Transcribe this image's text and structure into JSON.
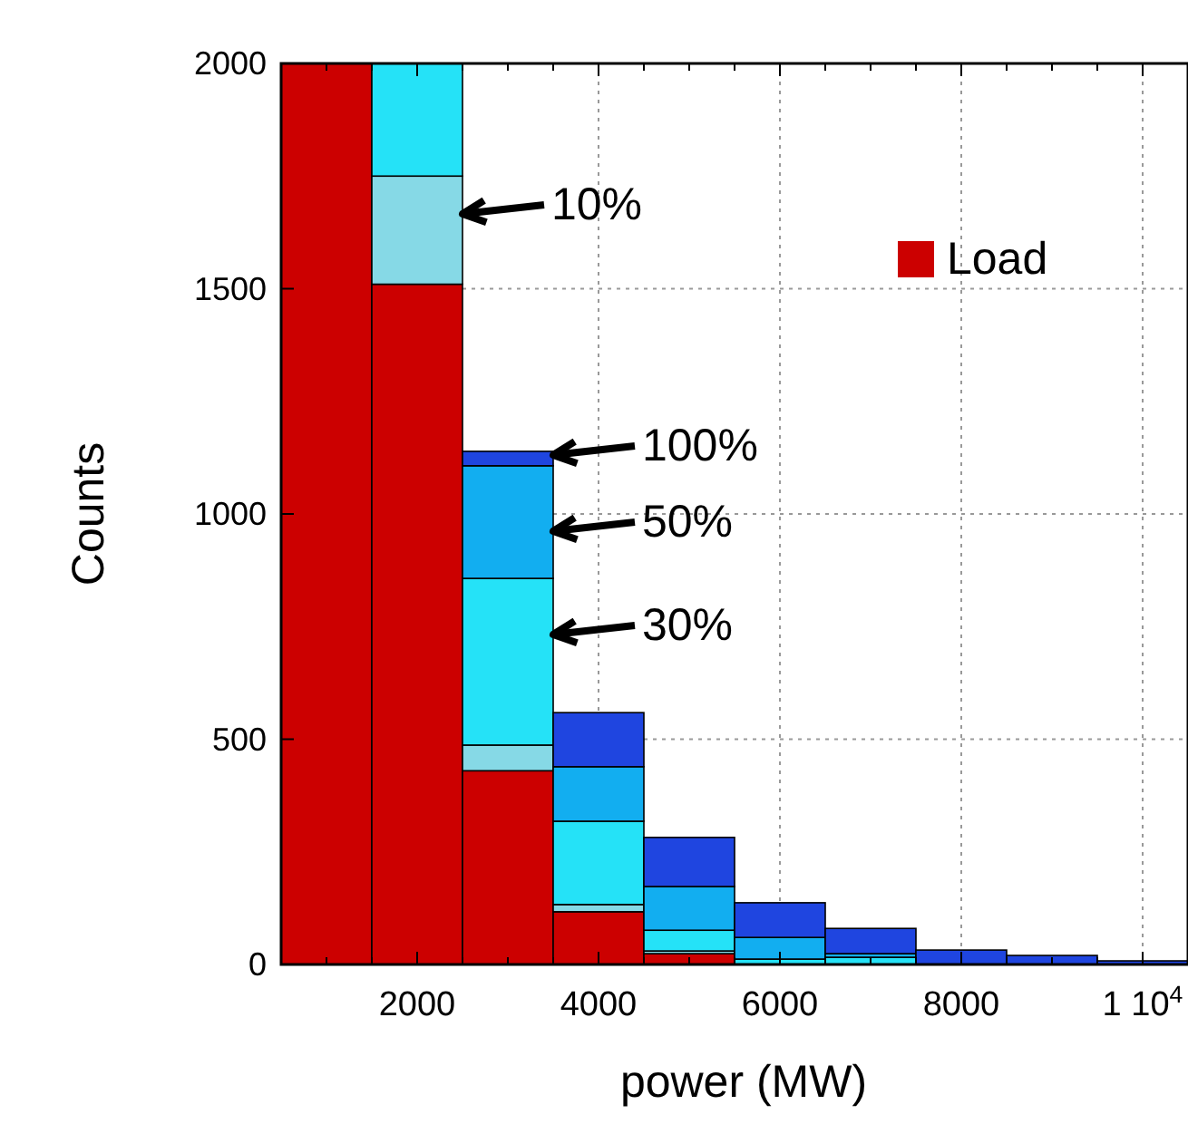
{
  "chart_data": {
    "type": "bar",
    "xlabel": "power (MW)",
    "ylabel": "Counts",
    "stacked": true,
    "x": [
      1000,
      2000,
      3000,
      4000,
      5000,
      6000,
      7000,
      8000,
      9000,
      10000
    ],
    "series": [
      {
        "name": "Load",
        "color": "#cc0000",
        "values": [
          2000,
          1510,
          430,
          117,
          24,
          null,
          null,
          null,
          null,
          null
        ]
      },
      {
        "color": "#86d9e6",
        "values": [
          null,
          240,
          57,
          16,
          6,
          null,
          null,
          null,
          null,
          null
        ]
      },
      {
        "color": "#25e2f7",
        "values": [
          null,
          250,
          370,
          185,
          46,
          12,
          16,
          null,
          null,
          null
        ]
      },
      {
        "color": "#12aef0",
        "values": [
          null,
          null,
          250,
          121,
          97,
          48,
          8,
          null,
          null,
          null
        ]
      },
      {
        "color": "#1f45e0",
        "values": [
          null,
          null,
          32,
          120,
          109,
          77,
          56,
          32,
          20,
          8
        ]
      }
    ],
    "xlim": [
      500,
      10500
    ],
    "ylim": [
      0,
      2000
    ],
    "xticks": [
      {
        "value": 500,
        "label": null
      },
      {
        "value": 1000,
        "label": null
      },
      {
        "value": 1500,
        "label": null
      },
      2000,
      {
        "value": 2500,
        "label": null
      },
      {
        "value": 3000,
        "label": null
      },
      {
        "value": 3500,
        "label": null
      },
      4000,
      {
        "value": 4500,
        "label": null
      },
      {
        "value": 5000,
        "label": null
      },
      {
        "value": 5500,
        "label": null
      },
      6000,
      {
        "value": 6500,
        "label": null
      },
      {
        "value": 7000,
        "label": null
      },
      {
        "value": 7500,
        "label": null
      },
      8000,
      {
        "value": 8500,
        "label": null
      },
      {
        "value": 9000,
        "label": null
      },
      {
        "value": 9500,
        "label": null
      },
      {
        "value": 10000,
        "label": "1 10$^{4}$"
      },
      {
        "value": 10500,
        "label": null
      }
    ],
    "yticks": [
      0,
      500,
      1000,
      1500,
      2000
    ],
    "grid": true,
    "legend": "top right",
    "annotations": [
      "10%",
      "100%",
      "50%",
      "30%"
    ]
  }
}
